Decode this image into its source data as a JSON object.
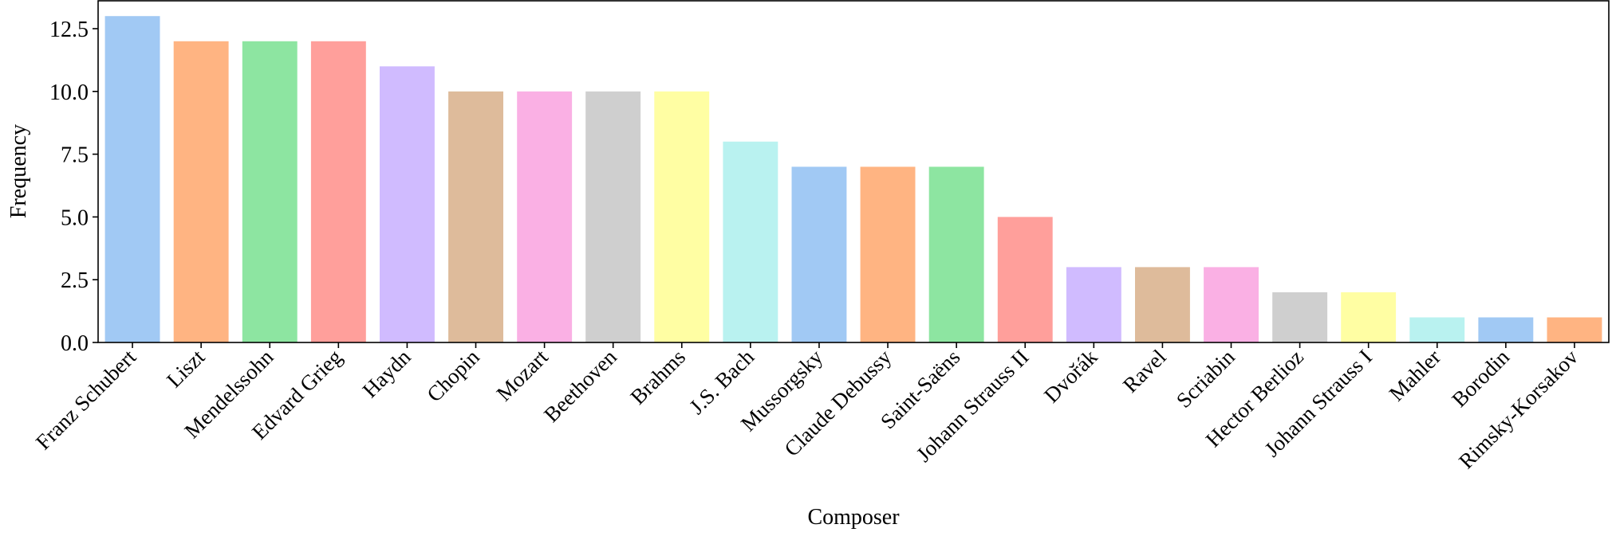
{
  "chart_data": {
    "type": "bar",
    "title": "",
    "xlabel": "Composer",
    "ylabel": "Frequency",
    "ylim": [
      0,
      13.65
    ],
    "yticks": [
      0.0,
      2.5,
      5.0,
      7.5,
      10.0,
      12.5
    ],
    "ytick_labels": [
      "0.0",
      "2.5",
      "5.0",
      "7.5",
      "10.0",
      "12.5"
    ],
    "grid": false,
    "legend": null,
    "categories": [
      "Franz Schubert",
      "Liszt",
      "Mendelssohn",
      "Edvard Grieg",
      "Haydn",
      "Chopin",
      "Mozart",
      "Beethoven",
      "Brahms",
      "J.S. Bach",
      "Mussorgsky",
      "Claude Debussy",
      "Saint-Saëns",
      "Johann Strauss II",
      "Dvořák",
      "Ravel",
      "Scriabin",
      "Hector Berlioz",
      "Johann Strauss I",
      "Mahler",
      "Borodin",
      "Rimsky-Korsakov"
    ],
    "values": [
      13,
      12,
      12,
      12,
      11,
      10,
      10,
      10,
      10,
      8,
      7,
      7,
      7,
      5,
      3,
      3,
      3,
      2,
      2,
      1,
      1,
      1
    ],
    "colors": [
      "#a1c9f4",
      "#ffb482",
      "#8de5a1",
      "#ff9f9b",
      "#d0bbff",
      "#debb9b",
      "#fab0e4",
      "#cfcfcf",
      "#fffea3",
      "#b9f2f0",
      "#a1c9f4",
      "#ffb482",
      "#8de5a1",
      "#ff9f9b",
      "#d0bbff",
      "#debb9b",
      "#fab0e4",
      "#cfcfcf",
      "#fffea3",
      "#b9f2f0",
      "#a1c9f4",
      "#ffb482"
    ]
  }
}
